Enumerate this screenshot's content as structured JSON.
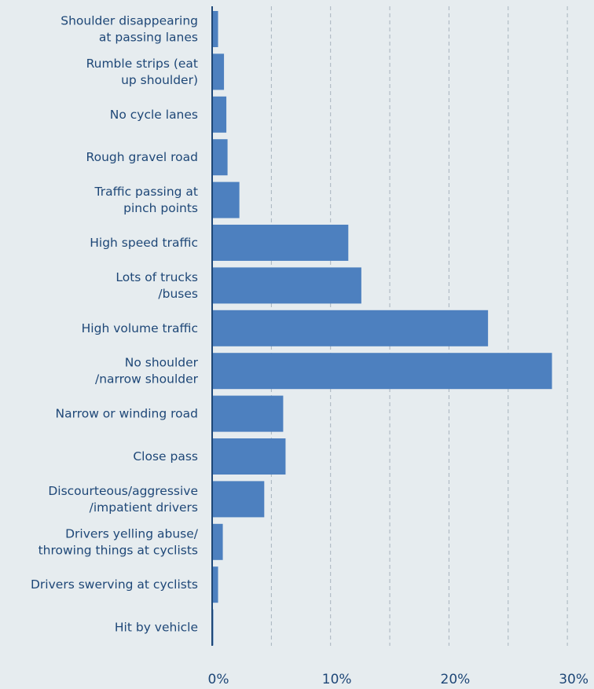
{
  "colors": {
    "background": "#e6ecef",
    "bar": "#4d80bf",
    "axis": "#1e4777",
    "grid": "#a7b3bd",
    "text": "#1e4777"
  },
  "chart_data": {
    "type": "bar",
    "orientation": "horizontal",
    "categories": [
      [
        "Shoulder disappearing",
        "at passing lanes"
      ],
      [
        "Rumble strips (eat",
        "up shoulder)"
      ],
      [
        "No cycle lanes"
      ],
      [
        "Rough gravel road"
      ],
      [
        "Traffic passing at",
        "pinch points"
      ],
      [
        "High speed traffic"
      ],
      [
        "Lots of trucks",
        "/buses"
      ],
      [
        "High volume traffic"
      ],
      [
        "No shoulder",
        "/narrow shoulder"
      ],
      [
        "Narrow or winding road"
      ],
      [
        "Close pass"
      ],
      [
        "Discourteous/aggressive",
        "/impatient drivers"
      ],
      [
        "Drivers yelling abuse/",
        "throwing things at cyclists"
      ],
      [
        "Drivers swerving at cyclists"
      ],
      [
        "Hit by vehicle"
      ]
    ],
    "values": [
      0.5,
      1.0,
      1.2,
      1.3,
      2.3,
      11.5,
      12.6,
      23.3,
      28.7,
      6.0,
      6.2,
      4.4,
      0.9,
      0.5,
      0.1
    ],
    "xlim": [
      0,
      32
    ],
    "xticks": [
      0,
      10,
      20,
      30
    ],
    "xtick_labels": [
      "0%",
      "10%",
      "20%",
      "30%"
    ],
    "minor_grid": [
      5,
      15,
      25
    ],
    "grid": true,
    "title": "",
    "xlabel": "",
    "ylabel": ""
  }
}
